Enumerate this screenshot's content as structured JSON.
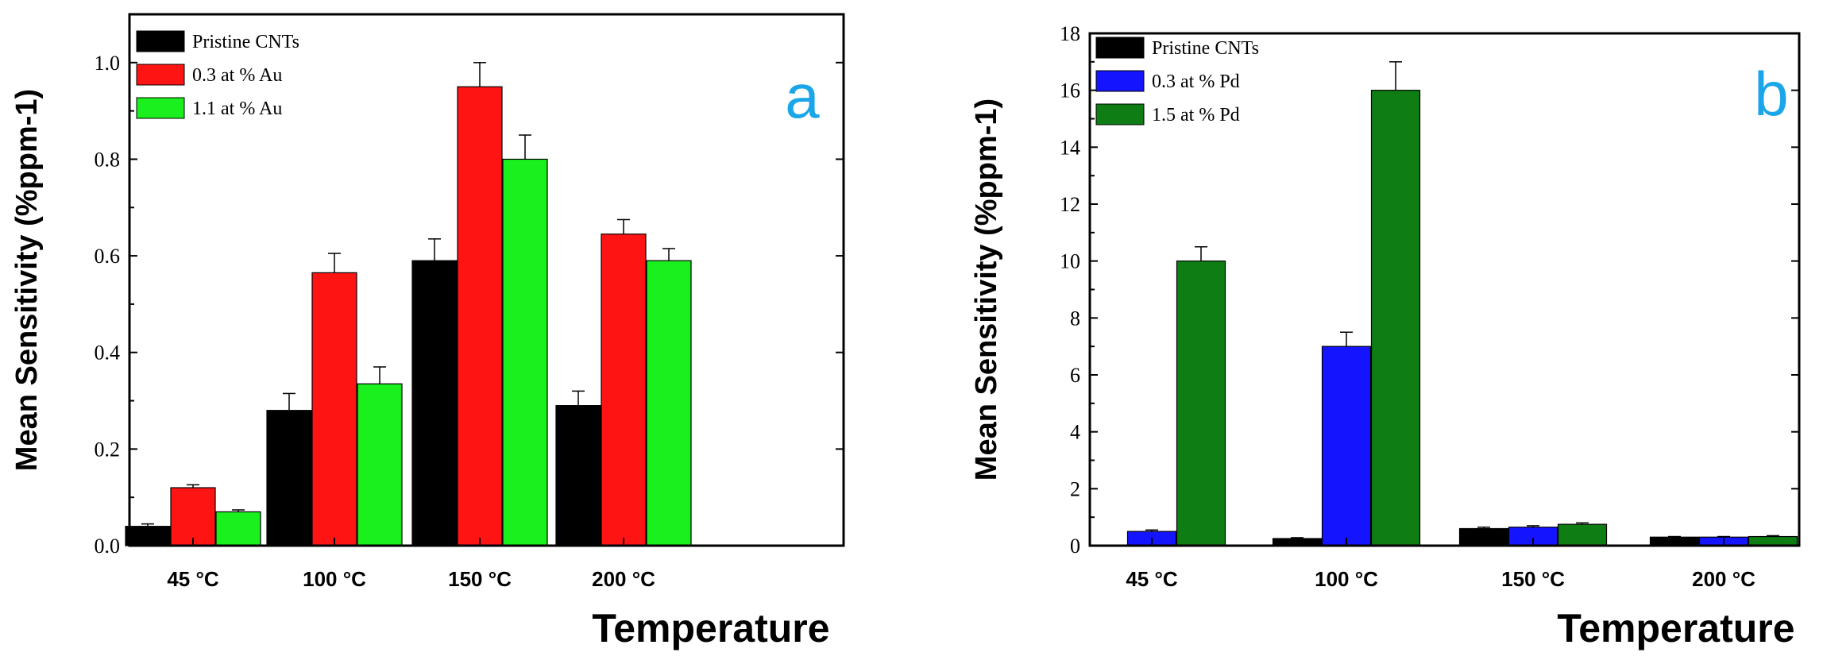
{
  "chart_data": [
    {
      "type": "bar",
      "panel_label": "a",
      "title": "",
      "xlabel": "Temperature",
      "ylabel": "Mean Sensitivity (%ppm-1)",
      "categories": [
        "45 °C",
        "100 °C",
        "150 °C",
        "200 °C"
      ],
      "ylim": [
        0,
        1.1
      ],
      "yticks": [
        0.0,
        0.2,
        0.4,
        0.6,
        0.8,
        1.0
      ],
      "ytick_labels": [
        "0.0",
        "0.2",
        "0.4",
        "0.6",
        "0.8",
        "1.0"
      ],
      "legend_position": "top-left",
      "series": [
        {
          "name": "Pristine CNTs",
          "color": "#000000",
          "values": [
            0.04,
            0.28,
            0.59,
            0.29
          ],
          "errors": [
            0.005,
            0.035,
            0.045,
            0.03
          ]
        },
        {
          "name": "0.3 at % Au",
          "color": "#ff1414",
          "values": [
            0.12,
            0.565,
            0.95,
            0.645
          ],
          "errors": [
            0.006,
            0.04,
            0.05,
            0.03
          ]
        },
        {
          "name": "1.1 at % Au",
          "color": "#19f01e",
          "values": [
            0.07,
            0.335,
            0.8,
            0.59
          ],
          "errors": [
            0.004,
            0.035,
            0.05,
            0.025
          ]
        }
      ]
    },
    {
      "type": "bar",
      "panel_label": "b",
      "title": "",
      "xlabel": "Temperature",
      "ylabel": "Mean Sensitivity (%ppm-1)",
      "categories": [
        "45 °C",
        "100 °C",
        "150 °C",
        "200 °C"
      ],
      "ylim": [
        0,
        18
      ],
      "yticks": [
        0,
        2,
        4,
        6,
        8,
        10,
        12,
        14,
        16,
        18
      ],
      "ytick_labels": [
        "0",
        "2",
        "4",
        "6",
        "8",
        "10",
        "12",
        "14",
        "16",
        "18"
      ],
      "legend_position": "top-left",
      "series": [
        {
          "name": "Pristine CNTs",
          "color": "#000000",
          "values": [
            0.0,
            0.25,
            0.6,
            0.3
          ],
          "errors": [
            0,
            0.03,
            0.05,
            0.02
          ]
        },
        {
          "name": "0.3 at % Pd",
          "color": "#1414ff",
          "values": [
            0.5,
            7.0,
            0.65,
            0.3
          ],
          "errors": [
            0.05,
            0.5,
            0.05,
            0.02
          ]
        },
        {
          "name": "1.5 at % Pd",
          "color": "#0e7d14",
          "values": [
            10.0,
            16.0,
            0.75,
            0.32
          ],
          "errors": [
            0.5,
            1.0,
            0.05,
            0.03
          ]
        }
      ]
    }
  ]
}
